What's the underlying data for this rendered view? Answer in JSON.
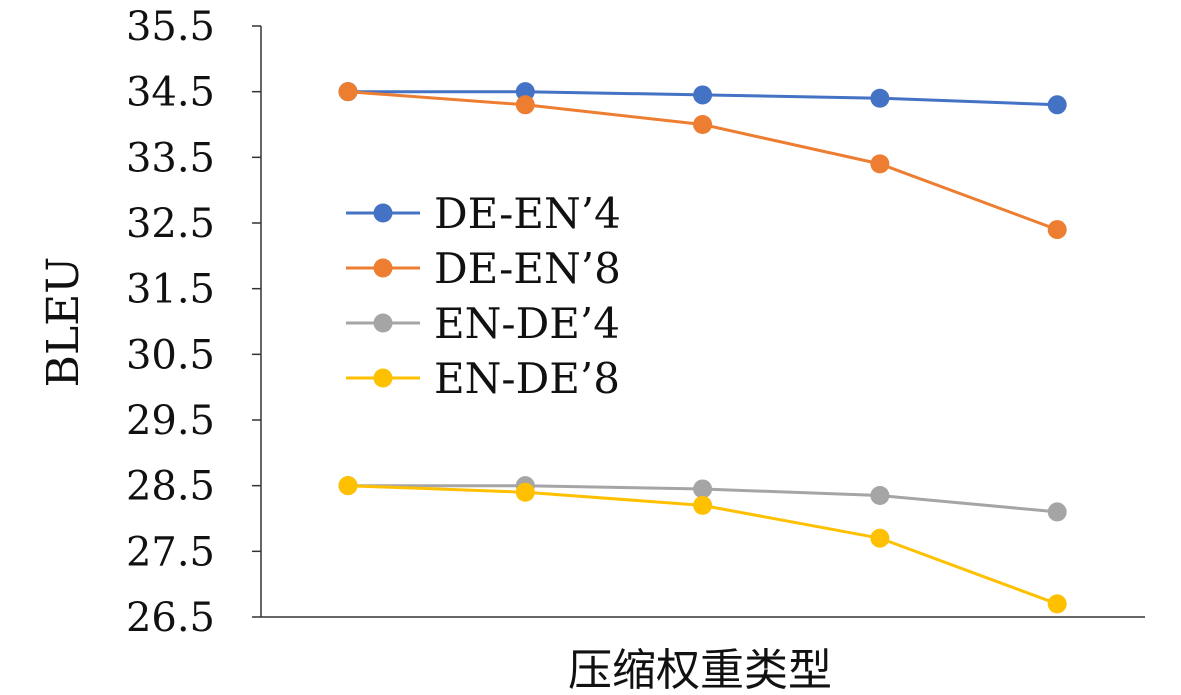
{
  "chart_data": {
    "type": "line",
    "title": "",
    "xlabel": "压缩权重类型",
    "ylabel": "BLEU",
    "x": [
      1,
      2,
      3,
      4,
      5
    ],
    "ylim": [
      26.5,
      35.5
    ],
    "yticks": [
      "26.5",
      "27.5",
      "28.5",
      "29.5",
      "30.5",
      "31.5",
      "32.5",
      "33.5",
      "34.5",
      "35.5"
    ],
    "grid": false,
    "legend_position": "center-left",
    "series": [
      {
        "name": "DE-EN’4",
        "color": "#4472C4",
        "values": [
          34.5,
          34.5,
          34.45,
          34.4,
          34.3
        ]
      },
      {
        "name": "DE-EN’8",
        "color": "#ED7D31",
        "values": [
          34.5,
          34.3,
          34.0,
          33.4,
          32.4
        ]
      },
      {
        "name": "EN-DE’4",
        "color": "#A5A5A5",
        "values": [
          28.5,
          28.5,
          28.45,
          28.35,
          28.1
        ]
      },
      {
        "name": "EN-DE’8",
        "color": "#FFC000",
        "values": [
          28.5,
          28.4,
          28.2,
          27.7,
          26.7
        ]
      }
    ]
  }
}
